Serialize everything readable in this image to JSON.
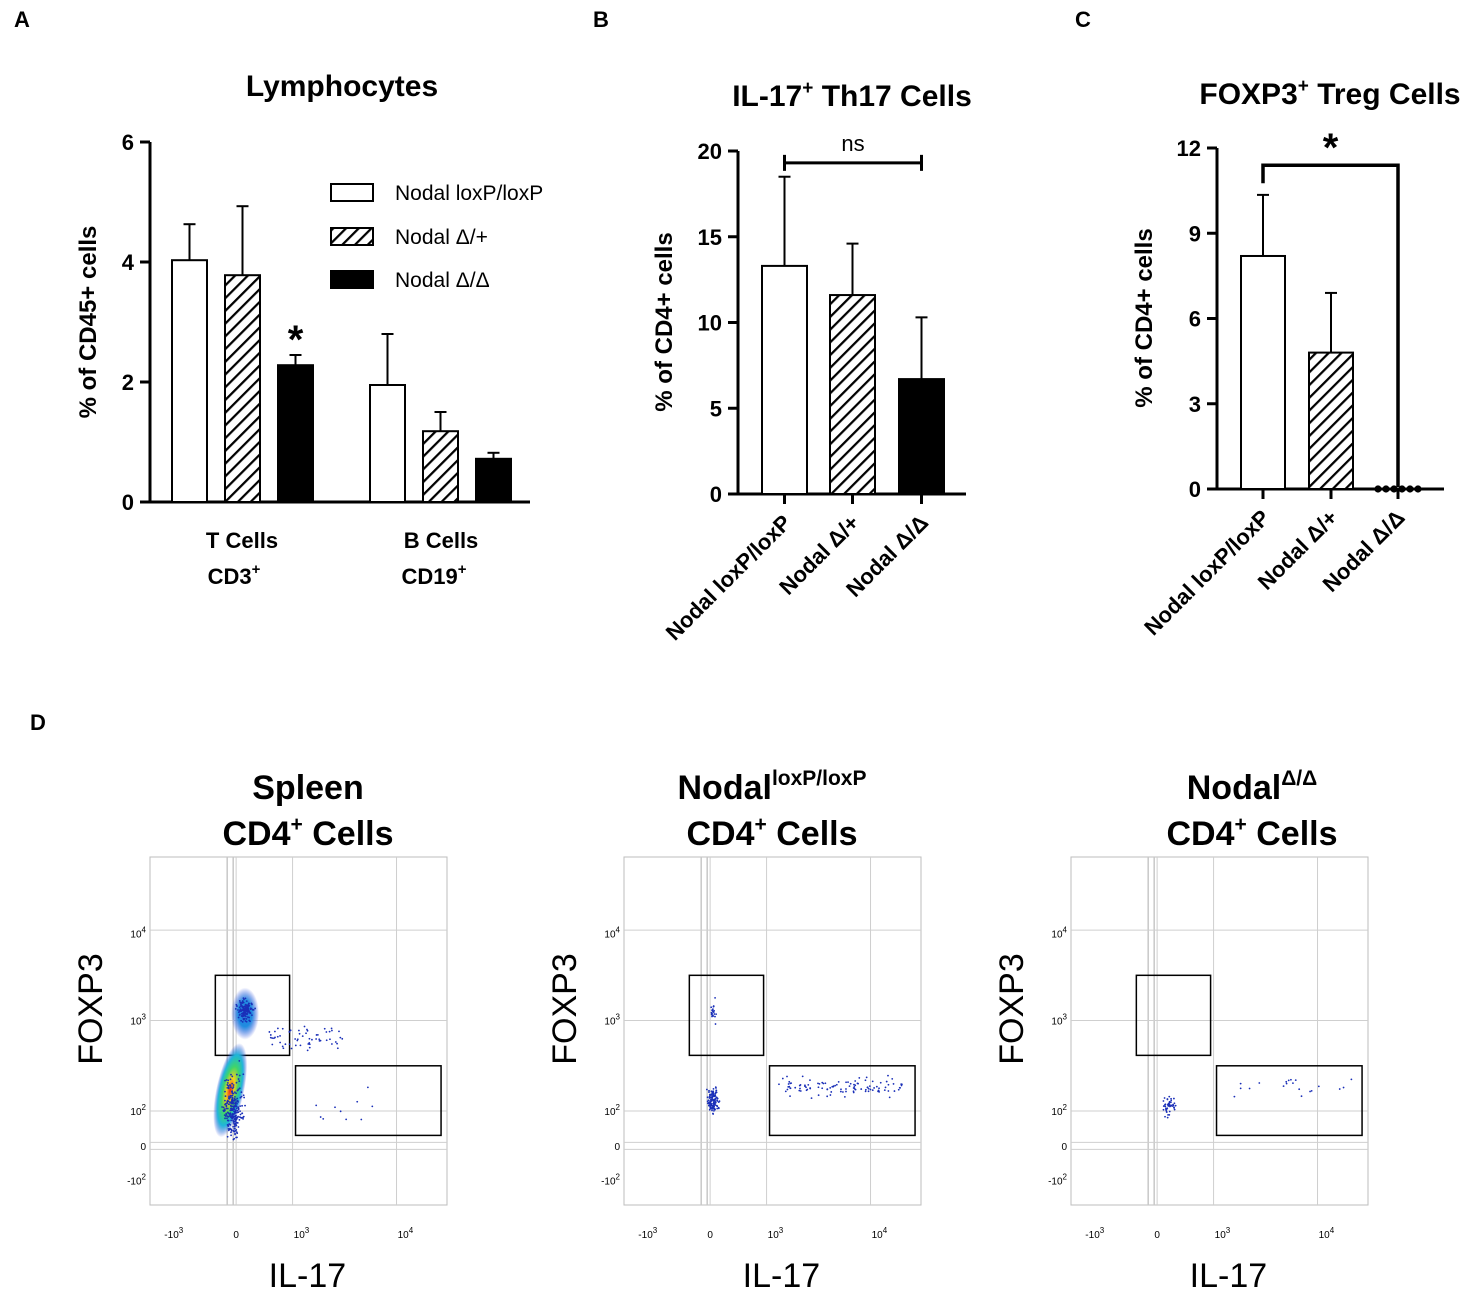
{
  "colors": {
    "bar_black": "#000000",
    "bar_white": "#ffffff",
    "grid": "#c8c8c8"
  },
  "panel_labels": {
    "a": "A",
    "b": "B",
    "c": "C",
    "d": "D"
  },
  "chart_data": [
    {
      "id": "A",
      "type": "bar",
      "title": "Lymphocytes",
      "ylabel": "% of CD45+ cells",
      "ylim": [
        0,
        6
      ],
      "yticks": [
        0,
        2,
        4,
        6
      ],
      "groups": [
        {
          "label_line1": "T Cells",
          "label_line2": "CD3",
          "label_sup": "+"
        },
        {
          "label_line1": "B Cells",
          "label_line2": "CD19",
          "label_sup": "+"
        }
      ],
      "series": [
        {
          "name": "Nodal loxP/loxP",
          "fill": "white",
          "values": [
            4.03,
            1.95
          ],
          "errors": [
            0.6,
            0.85
          ]
        },
        {
          "name": "Nodal Δ/+",
          "fill": "hatched",
          "values": [
            3.78,
            1.18
          ],
          "errors": [
            1.15,
            0.32
          ]
        },
        {
          "name": "Nodal Δ/Δ",
          "fill": "black",
          "values": [
            2.28,
            0.72
          ],
          "errors": [
            0.17,
            0.1
          ]
        }
      ],
      "annotations": [
        {
          "text": "*",
          "group": 0,
          "series": 2
        }
      ]
    },
    {
      "id": "B",
      "type": "bar",
      "title_main": "IL-17",
      "title_sup": "+",
      "title_rest": " Th17 Cells",
      "ylabel": "% of CD4+ cells",
      "ylim": [
        0,
        20
      ],
      "yticks": [
        0,
        5,
        10,
        15,
        20
      ],
      "categories": [
        "Nodal loxP/loxP",
        "Nodal Δ/+",
        "Nodal Δ/Δ"
      ],
      "fills": [
        "white",
        "hatched",
        "black"
      ],
      "values": [
        13.3,
        11.6,
        6.7
      ],
      "errors": [
        5.2,
        3.0,
        3.6
      ],
      "comparison": {
        "text": "ns",
        "from": 0,
        "to": 2,
        "y": 19.6
      }
    },
    {
      "id": "C",
      "type": "bar",
      "title_main": "FOXP3",
      "title_sup": "+",
      "title_rest": " Treg Cells",
      "ylabel": "% of CD4+ cells",
      "ylim": [
        0,
        12
      ],
      "yticks": [
        0,
        3,
        6,
        9,
        12
      ],
      "categories": [
        "Nodal loxP/loxP",
        "Nodal Δ/+",
        "Nodal Δ/Δ"
      ],
      "fills": [
        "white",
        "hatched",
        "black"
      ],
      "values": [
        8.2,
        4.8,
        0
      ],
      "errors": [
        2.15,
        2.1,
        0
      ],
      "zero_points": 6,
      "comparison": {
        "text": "*",
        "from": 0,
        "to": 2,
        "y": 11.5
      }
    }
  ],
  "flow_panels": [
    {
      "title1": "Spleen",
      "title1_sup": "",
      "title2": "CD4",
      "title2_sup": "+",
      "title2_rest": " Cells"
    },
    {
      "title1": "Nodal",
      "title1_sup": "loxP/loxP",
      "title2": "CD4",
      "title2_sup": "+",
      "title2_rest": " Cells"
    },
    {
      "title1": "Nodal",
      "title1_sup": "Δ/Δ",
      "title2": "CD4",
      "title2_sup": "+",
      "title2_rest": " Cells"
    }
  ],
  "flow_axes": {
    "x_label": "IL-17",
    "y_label": "FOXP3",
    "x_ticks": [
      "-10",
      "0",
      "10",
      "10"
    ],
    "x_tick_sups": [
      "3",
      "",
      "3",
      "4"
    ],
    "y_ticks": [
      "10",
      "10",
      "10",
      "0",
      "-10"
    ],
    "y_tick_sups": [
      "4",
      "3",
      "2",
      "",
      "2"
    ]
  }
}
